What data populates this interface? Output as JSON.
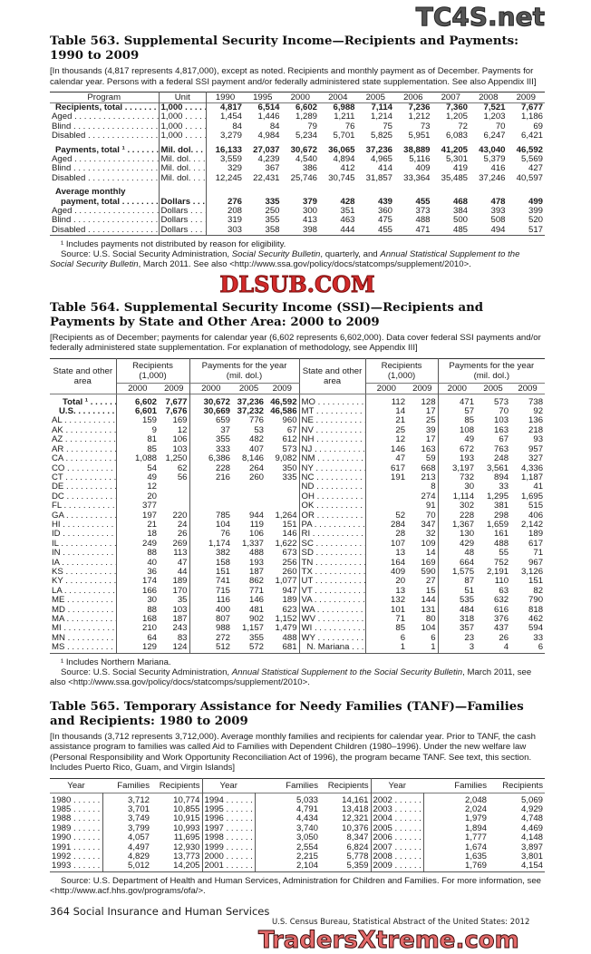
{
  "t563": {
    "title": "Table 563. Supplemental Security Income—Recipients and Payments: 1990 to 2009",
    "headnote": "[In thousands (4,817 represents 4,817,000), except as noted. Recipients and monthly payment as of December. Payments for calendar year. Persons with a federal SSI payment and/or federally administered state supplementation. See also Appendix III]",
    "headers": [
      "Program",
      "Unit",
      "1990",
      "1995",
      "2000",
      "2004",
      "2005",
      "2006",
      "2007",
      "2008",
      "2009"
    ],
    "rows": [
      {
        "label": "Recipients, total",
        "unit": "1,000",
        "bold": true,
        "v": [
          "4,817",
          "6,514",
          "6,602",
          "6,988",
          "7,114",
          "7,236",
          "7,360",
          "7,521",
          "7,677"
        ]
      },
      {
        "label": "Aged",
        "unit": "1,000",
        "v": [
          "1,454",
          "1,446",
          "1,289",
          "1,211",
          "1,214",
          "1,212",
          "1,205",
          "1,203",
          "1,186"
        ]
      },
      {
        "label": "Blind",
        "unit": "1,000",
        "v": [
          "84",
          "84",
          "79",
          "76",
          "75",
          "73",
          "72",
          "70",
          "69"
        ]
      },
      {
        "label": "Disabled",
        "unit": "1,000",
        "v": [
          "3,279",
          "4,984",
          "5,234",
          "5,701",
          "5,825",
          "5,951",
          "6,083",
          "6,247",
          "6,421"
        ]
      },
      {
        "label": "Payments, total ¹",
        "unit": "Mil. dol.",
        "bold": true,
        "gap": true,
        "v": [
          "16,133",
          "27,037",
          "30,672",
          "36,065",
          "37,236",
          "38,889",
          "41,205",
          "43,040",
          "46,592"
        ]
      },
      {
        "label": "Aged",
        "unit": "Mil. dol.",
        "v": [
          "3,559",
          "4,239",
          "4,540",
          "4,894",
          "4,965",
          "5,116",
          "5,301",
          "5,379",
          "5,569"
        ]
      },
      {
        "label": "Blind",
        "unit": "Mil. dol.",
        "v": [
          "329",
          "367",
          "386",
          "412",
          "414",
          "409",
          "419",
          "416",
          "427"
        ]
      },
      {
        "label": "Disabled",
        "unit": "Mil. dol.",
        "v": [
          "12,245",
          "22,431",
          "25,746",
          "30,745",
          "31,857",
          "33,364",
          "35,485",
          "37,246",
          "40,597"
        ]
      },
      {
        "label": "Average monthly",
        "unit": "",
        "bold": true,
        "gap": true,
        "noleader": true,
        "v": []
      },
      {
        "label": "payment, total",
        "unit": "Dollars",
        "bold": true,
        "indent": true,
        "v": [
          "276",
          "335",
          "379",
          "428",
          "439",
          "455",
          "468",
          "478",
          "499"
        ]
      },
      {
        "label": "Aged",
        "unit": "Dollars",
        "v": [
          "208",
          "250",
          "300",
          "351",
          "360",
          "373",
          "384",
          "393",
          "399"
        ]
      },
      {
        "label": "Blind",
        "unit": "Dollars",
        "v": [
          "319",
          "355",
          "413",
          "463",
          "475",
          "488",
          "500",
          "508",
          "520"
        ]
      },
      {
        "label": "Disabled",
        "unit": "Dollars",
        "v": [
          "303",
          "358",
          "398",
          "444",
          "455",
          "471",
          "485",
          "494",
          "517"
        ]
      }
    ],
    "footnote": "¹ Includes payments not distributed by reason for eligibility.",
    "source": [
      "Source: U.S. Social Security Administration, ",
      "Social Security Bulletin",
      ", quarterly, and ",
      "Annual Statistical Supplement to the Social Security Bulletin",
      ", March 2011. See also <http://www.ssa.gov/policy/docs/statcomps/supplement/2010>."
    ]
  },
  "t564": {
    "title": "Table 564. Supplemental Security Income (SSI)—Recipients and Payments by State and Other Area: 2000 to 2009",
    "headnote": "[Recipients as of December; payments for calendar year (6,602 represents 6,602,000). Data cover federal SSI payments and/or federally administered state supplementation. For explanation of methodology, see Appendix III]",
    "h_area": "State and other area",
    "h_recip": "Recipients (1,000)",
    "h_pay": "Payments for the year (mil. dol.)",
    "years_recip": [
      "2000",
      "2009"
    ],
    "years_pay": [
      "2000",
      "2005",
      "2009"
    ],
    "left": [
      [
        "Total ¹",
        "6,602",
        "7,677",
        "30,672",
        "37,236",
        "46,592"
      ],
      [
        "U.S.",
        "6,601",
        "7,676",
        "30,669",
        "37,232",
        "46,586"
      ],
      [
        "AL",
        "159",
        "169",
        "659",
        "776",
        "960"
      ],
      [
        "AK",
        "9",
        "12",
        "37",
        "53",
        "67"
      ],
      [
        "AZ",
        "81",
        "106",
        "355",
        "482",
        "612"
      ],
      [
        "AR",
        "85",
        "103",
        "333",
        "407",
        "573"
      ],
      [
        "CA",
        "1,088",
        "1,250",
        "6,386",
        "8,146",
        "9,082"
      ],
      [
        "CO",
        "54",
        "62",
        "228",
        "264",
        "350"
      ],
      [
        "CT",
        "49",
        "56",
        "216",
        "260",
        "335"
      ],
      [
        "DE",
        "12",
        "",
        "",
        "",
        ""
      ],
      [
        "DC",
        "20",
        "",
        "",
        "",
        ""
      ],
      [
        "FL",
        "377",
        "",
        "",
        "",
        ""
      ],
      [
        "GA",
        "197",
        "220",
        "785",
        "944",
        "1,264"
      ],
      [
        "HI",
        "21",
        "24",
        "104",
        "119",
        "151"
      ],
      [
        "ID",
        "18",
        "26",
        "76",
        "106",
        "146"
      ],
      [
        "IL",
        "249",
        "269",
        "1,174",
        "1,337",
        "1,622"
      ],
      [
        "IN",
        "88",
        "113",
        "382",
        "488",
        "673"
      ],
      [
        "IA",
        "40",
        "47",
        "158",
        "193",
        "256"
      ],
      [
        "KS",
        "36",
        "44",
        "151",
        "187",
        "260"
      ],
      [
        "KY",
        "174",
        "189",
        "741",
        "862",
        "1,077"
      ],
      [
        "LA",
        "166",
        "170",
        "715",
        "771",
        "947"
      ],
      [
        "ME",
        "30",
        "35",
        "116",
        "146",
        "189"
      ],
      [
        "MD",
        "88",
        "103",
        "400",
        "481",
        "623"
      ],
      [
        "MA",
        "168",
        "187",
        "807",
        "902",
        "1,152"
      ],
      [
        "MI",
        "210",
        "243",
        "988",
        "1,157",
        "1,479"
      ],
      [
        "MN",
        "64",
        "83",
        "272",
        "355",
        "488"
      ],
      [
        "MS",
        "129",
        "124",
        "512",
        "572",
        "681"
      ]
    ],
    "right": [
      [
        "MO",
        "112",
        "128",
        "471",
        "573",
        "738"
      ],
      [
        "MT",
        "14",
        "17",
        "57",
        "70",
        "92"
      ],
      [
        "NE",
        "21",
        "25",
        "85",
        "103",
        "136"
      ],
      [
        "NV",
        "25",
        "39",
        "108",
        "163",
        "218"
      ],
      [
        "NH",
        "12",
        "17",
        "49",
        "67",
        "93"
      ],
      [
        "NJ",
        "146",
        "163",
        "672",
        "763",
        "957"
      ],
      [
        "NM",
        "47",
        "59",
        "193",
        "248",
        "327"
      ],
      [
        "NY",
        "617",
        "668",
        "3,197",
        "3,561",
        "4,336"
      ],
      [
        "NC",
        "191",
        "213",
        "732",
        "894",
        "1,187"
      ],
      [
        "ND",
        "",
        "8",
        "30",
        "33",
        "41"
      ],
      [
        "OH",
        "",
        "274",
        "1,114",
        "1,295",
        "1,695"
      ],
      [
        "OK",
        "",
        "91",
        "302",
        "381",
        "515"
      ],
      [
        "OR",
        "52",
        "70",
        "228",
        "298",
        "406"
      ],
      [
        "PA",
        "284",
        "347",
        "1,367",
        "1,659",
        "2,142"
      ],
      [
        "RI",
        "28",
        "32",
        "130",
        "161",
        "189"
      ],
      [
        "SC",
        "107",
        "109",
        "429",
        "488",
        "617"
      ],
      [
        "SD",
        "13",
        "14",
        "48",
        "55",
        "71"
      ],
      [
        "TN",
        "164",
        "169",
        "664",
        "752",
        "967"
      ],
      [
        "TX",
        "409",
        "590",
        "1,575",
        "2,191",
        "3,126"
      ],
      [
        "UT",
        "20",
        "27",
        "87",
        "110",
        "151"
      ],
      [
        "VT",
        "13",
        "15",
        "51",
        "63",
        "82"
      ],
      [
        "VA",
        "132",
        "144",
        "535",
        "632",
        "790"
      ],
      [
        "WA",
        "101",
        "131",
        "484",
        "616",
        "818"
      ],
      [
        "WV",
        "71",
        "80",
        "318",
        "376",
        "462"
      ],
      [
        "WI",
        "85",
        "104",
        "357",
        "437",
        "594"
      ],
      [
        "WY",
        "6",
        "6",
        "23",
        "26",
        "33"
      ],
      [
        "N. Mariana",
        "1",
        "1",
        "3",
        "4",
        "6"
      ]
    ],
    "footnote": "¹ Includes Northern Mariana.",
    "source": [
      "Source: U.S. Social Security Administration, ",
      "Annual Statistical Supplement to the Social Security Bulletin",
      ", March 2011, see also <http://www.ssa.gov/policy/docs/statcomps/supplement/2010>."
    ]
  },
  "t565": {
    "title": "Table 565. Temporary Assistance for Needy Families (TANF)—Families and Recipients: 1980 to 2009",
    "headnote": "[In thousands (3,712 represents 3,712,000). Average monthly families and recipients for calendar year. Prior to TANF, the cash assistance program to families was called Aid to Families with Dependent Children (1980–1996). Under the new welfare law (Personal Responsibility and Work Opportunity Reconciliation Act of 1996), the program became TANF. See text, this section. Includes Puerto Rico, Guam, and Virgin Islands]",
    "headers": [
      "Year",
      "Families",
      "Recipients"
    ],
    "rows": [
      [
        "1980",
        "3,712",
        "10,774",
        "1994",
        "5,033",
        "14,161",
        "2002",
        "2,048",
        "5,069"
      ],
      [
        "1985",
        "3,701",
        "10,855",
        "1995",
        "4,791",
        "13,418",
        "2003",
        "2,024",
        "4,929"
      ],
      [
        "1988",
        "3,749",
        "10,915",
        "1996",
        "4,434",
        "12,321",
        "2004",
        "1,979",
        "4,748"
      ],
      [
        "1989",
        "3,799",
        "10,993",
        "1997",
        "3,740",
        "10,376",
        "2005",
        "1,894",
        "4,469"
      ],
      [
        "1990",
        "4,057",
        "11,695",
        "1998",
        "3,050",
        "8,347",
        "2006",
        "1,777",
        "4,148"
      ],
      [
        "1991",
        "4,497",
        "12,930",
        "1999",
        "2,554",
        "6,824",
        "2007",
        "1,674",
        "3,897"
      ],
      [
        "1992",
        "4,829",
        "13,773",
        "2000",
        "2,215",
        "5,778",
        "2008",
        "1,635",
        "3,801"
      ],
      [
        "1993",
        "5,012",
        "14,205",
        "2001",
        "2,104",
        "5,359",
        "2009",
        "1,769",
        "4,154"
      ]
    ],
    "source": "Source: U.S. Department of Health and Human Services, Administration for Children and Families. For more information, see <http://www.acf.hhs.gov/programs/ofa/>."
  },
  "footer": {
    "page": "364  Social Insurance and Human Services",
    "census": "U.S. Census Bureau, Statistical Abstract of the United States: 2012"
  },
  "watermarks": {
    "top": "TC4S.net",
    "middle": "DLSUB.COM",
    "bottom": "TradersXtreme.com"
  }
}
